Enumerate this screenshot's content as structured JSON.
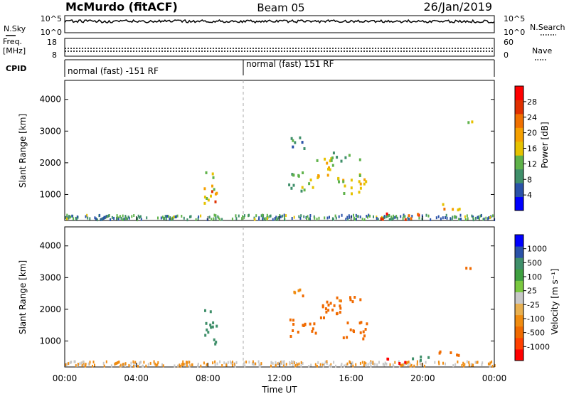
{
  "header": {
    "station": "McMurdo (fitACF)",
    "beam": "Beam 05",
    "date": "26/Jan/2019"
  },
  "left_labels": {
    "nsky": "N.Sky",
    "freq_1": "Freq.",
    "freq_2": "[MHz]",
    "cpid": "CPID"
  },
  "right_labels": {
    "nsearch": "N.Search",
    "nave": "Nave"
  },
  "nsky_axis": {
    "top": "10^5",
    "bottom": "10^0"
  },
  "freq_axis": {
    "left_top": "18",
    "left_bottom": "8",
    "right_top": "60",
    "right_bottom": "0"
  },
  "cpid_segments": [
    "normal (fast) -151 RF",
    "normal (fast) 151 RF"
  ],
  "colors": {
    "power_scale": [
      "#0000ff",
      "#2a52a8",
      "#3f8f6a",
      "#5fb24a",
      "#e6c200",
      "#f5a000",
      "#f07000",
      "#e03000",
      "#ff0000"
    ],
    "velocity_scale": [
      "#ff0000",
      "#ff4000",
      "#f06a00",
      "#f08c10",
      "#e8b050",
      "#c8c8c8",
      "#7ac840",
      "#3fa040",
      "#3f8f6a",
      "#2a52a8",
      "#0000ff"
    ]
  },
  "chart_data": [
    {
      "type": "heatmap",
      "name": "power",
      "x_ticks": [
        "00:00",
        "04:00",
        "08:00",
        "12:00",
        "16:00",
        "20:00",
        "00:00"
      ],
      "ylabel": "Slant Range [km]",
      "y_ticks": [
        "1000",
        "2000",
        "3000",
        "4000"
      ],
      "ylim": [
        180,
        4600
      ],
      "colorbar": {
        "label": "Power [dB]",
        "ticks": [
          "4",
          "8",
          "12",
          "16",
          "20",
          "24",
          "28"
        ],
        "range": [
          0,
          30
        ]
      },
      "patches": [
        {
          "t": 8.0,
          "r": 1200,
          "dt": 0.6,
          "dr": 1100,
          "v": 14
        },
        {
          "t": 8.3,
          "r": 900,
          "dt": 0.5,
          "dr": 500,
          "v": 22
        },
        {
          "t": 13.2,
          "r": 1400,
          "dt": 1.5,
          "dr": 600,
          "v": 12
        },
        {
          "t": 14.5,
          "r": 1800,
          "dt": 1.0,
          "dr": 700,
          "v": 16
        },
        {
          "t": 16.0,
          "r": 1300,
          "dt": 1.6,
          "dr": 700,
          "v": 14
        },
        {
          "t": 13.0,
          "r": 2600,
          "dt": 0.8,
          "dr": 500,
          "v": 9
        },
        {
          "t": 15.6,
          "r": 2200,
          "dt": 1.8,
          "dr": 300,
          "v": 10
        },
        {
          "t": 18.5,
          "r": 300,
          "dt": 2.5,
          "dr": 200,
          "v": 26
        },
        {
          "t": 21.5,
          "r": 600,
          "dt": 1.5,
          "dr": 200,
          "v": 18
        },
        {
          "t": 22.6,
          "r": 3300,
          "dt": 0.5,
          "dr": 200,
          "v": 14
        }
      ]
    },
    {
      "type": "heatmap",
      "name": "velocity",
      "x_ticks": [
        "00:00",
        "04:00",
        "08:00",
        "12:00",
        "16:00",
        "20:00",
        "00:00"
      ],
      "xlabel": "Time UT",
      "ylabel": "Slant Range [km]",
      "y_ticks": [
        "1000",
        "2000",
        "3000",
        "4000"
      ],
      "ylim": [
        180,
        4600
      ],
      "colorbar": {
        "label": "Velocity [m s⁻¹]",
        "ticks": [
          "-1000",
          "-500",
          "-100",
          "-25",
          "25",
          "100",
          "500",
          "1000"
        ]
      },
      "patches": [
        {
          "t": 8.1,
          "r": 1400,
          "dt": 0.7,
          "dr": 1200,
          "v": 150
        },
        {
          "t": 13.3,
          "r": 1400,
          "dt": 1.5,
          "dr": 600,
          "v": -150
        },
        {
          "t": 14.8,
          "r": 1900,
          "dt": 1.2,
          "dr": 800,
          "v": -200
        },
        {
          "t": 16.2,
          "r": 1300,
          "dt": 1.4,
          "dr": 600,
          "v": -150
        },
        {
          "t": 13.0,
          "r": 2500,
          "dt": 0.7,
          "dr": 400,
          "v": -80
        },
        {
          "t": 15.8,
          "r": 2250,
          "dt": 1.8,
          "dr": 300,
          "v": -120
        },
        {
          "t": 21.5,
          "r": 600,
          "dt": 1.5,
          "dr": 180,
          "v": -300
        },
        {
          "t": 18.4,
          "r": 350,
          "dt": 1.2,
          "dr": 200,
          "v": -700
        },
        {
          "t": 19.8,
          "r": 450,
          "dt": 1.5,
          "dr": 150,
          "v": 120
        },
        {
          "t": 22.6,
          "r": 3300,
          "dt": 0.5,
          "dr": 200,
          "v": -120
        }
      ]
    }
  ]
}
